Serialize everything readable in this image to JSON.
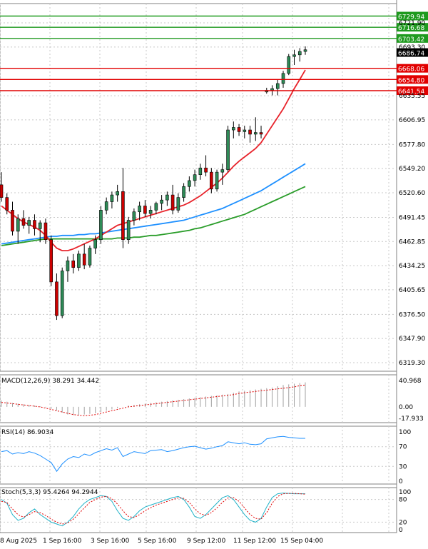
{
  "colors": {
    "bull": "#2e8b57",
    "bear": "#cc0000",
    "ma_fast": "#e8232b",
    "ma_mid": "#1e90ff",
    "ma_slow": "#2a9d2a",
    "resistance": "#1f9a1f",
    "support": "#e10000",
    "current_price_bg": "#000000",
    "grid": "#c8c8c8",
    "axis_text": "#000000"
  },
  "chart_data": [
    {
      "type": "candlestick",
      "panel": "price",
      "ylim": [
        6300,
        6750
      ],
      "y_ticks": [
        "6721.90",
        "6693.30",
        "6635.55",
        "6606.95",
        "6577.80",
        "6549.20",
        "6520.60",
        "6491.45",
        "6462.85",
        "6434.25",
        "6405.65",
        "6376.50",
        "6347.90",
        "6319.30"
      ],
      "current_price": {
        "label": "6686.74",
        "value": 6686.74
      },
      "resistance_levels": [
        {
          "label": "6729.94",
          "value": 6729.94
        },
        {
          "label": "6716.68",
          "value": 6716.68
        },
        {
          "label": "6703.42",
          "value": 6703.42
        }
      ],
      "support_levels": [
        {
          "label": "6668.06",
          "value": 6668.06
        },
        {
          "label": "6654.80",
          "value": 6654.8
        },
        {
          "label": "6641.54",
          "value": 6641.54
        }
      ],
      "candles": [
        [
          6530,
          6545,
          6510,
          6515
        ],
        [
          6515,
          6520,
          6495,
          6500
        ],
        [
          6500,
          6510,
          6470,
          6475
        ],
        [
          6475,
          6495,
          6460,
          6490
        ],
        [
          6490,
          6500,
          6478,
          6482
        ],
        [
          6482,
          6492,
          6472,
          6488
        ],
        [
          6488,
          6495,
          6470,
          6478
        ],
        [
          6478,
          6488,
          6462,
          6485
        ],
        [
          6485,
          6490,
          6460,
          6465
        ],
        [
          6465,
          6470,
          6410,
          6415
        ],
        [
          6415,
          6425,
          6370,
          6375
        ],
        [
          6375,
          6432,
          6372,
          6428
        ],
        [
          6428,
          6445,
          6415,
          6440
        ],
        [
          6440,
          6448,
          6425,
          6432
        ],
        [
          6432,
          6452,
          6428,
          6448
        ],
        [
          6448,
          6460,
          6430,
          6435
        ],
        [
          6435,
          6458,
          6432,
          6455
        ],
        [
          6455,
          6470,
          6448,
          6465
        ],
        [
          6465,
          6505,
          6460,
          6500
        ],
        [
          6500,
          6515,
          6495,
          6510
        ],
        [
          6510,
          6522,
          6502,
          6518
        ],
        [
          6518,
          6530,
          6510,
          6522
        ],
        [
          6522,
          6550,
          6455,
          6465
        ],
        [
          6465,
          6492,
          6460,
          6488
        ],
        [
          6488,
          6502,
          6482,
          6498
        ],
        [
          6498,
          6510,
          6488,
          6505
        ],
        [
          6505,
          6512,
          6492,
          6496
        ],
        [
          6496,
          6505,
          6490,
          6500
        ],
        [
          6500,
          6510,
          6495,
          6508
        ],
        [
          6508,
          6518,
          6500,
          6512
        ],
        [
          6512,
          6522,
          6505,
          6518
        ],
        [
          6518,
          6530,
          6495,
          6500
        ],
        [
          6500,
          6520,
          6497,
          6515
        ],
        [
          6515,
          6532,
          6510,
          6528
        ],
        [
          6528,
          6540,
          6522,
          6535
        ],
        [
          6535,
          6548,
          6528,
          6542
        ],
        [
          6542,
          6555,
          6536,
          6550
        ],
        [
          6550,
          6565,
          6540,
          6545
        ],
        [
          6545,
          6550,
          6520,
          6525
        ],
        [
          6525,
          6548,
          6522,
          6545
        ],
        [
          6545,
          6555,
          6530,
          6548
        ],
        [
          6548,
          6600,
          6545,
          6595
        ],
        [
          6595,
          6605,
          6585,
          6598
        ],
        [
          6598,
          6602,
          6588,
          6593
        ],
        [
          6593,
          6600,
          6585,
          6595
        ],
        [
          6595,
          6600,
          6580,
          6590
        ],
        [
          6590,
          6610,
          6582,
          6592
        ],
        [
          6592,
          6600,
          6585,
          6590
        ],
        [
          6640,
          6645,
          6638,
          6642
        ],
        [
          6642,
          6648,
          6636,
          6644
        ],
        [
          6644,
          6655,
          6636,
          6650
        ],
        [
          6650,
          6665,
          6645,
          6662
        ],
        [
          6662,
          6685,
          6660,
          6682
        ],
        [
          6682,
          6690,
          6672,
          6684
        ],
        [
          6684,
          6692,
          6676,
          6688
        ],
        [
          6688,
          6694,
          6684,
          6690
        ]
      ],
      "ma_fast": [
        6505,
        6500,
        6495,
        6490,
        6486,
        6483,
        6480,
        6476,
        6470,
        6462,
        6455,
        6452,
        6452,
        6454,
        6457,
        6460,
        6463,
        6466,
        6470,
        6474,
        6478,
        6482,
        6484,
        6486,
        6488,
        6490,
        6492,
        6494,
        6496,
        6498,
        6500,
        6502,
        6504,
        6506,
        6509,
        6513,
        6517,
        6522,
        6527,
        6532,
        6538,
        6545,
        6552,
        6558,
        6563,
        6568,
        6573,
        6580,
        6590,
        6600,
        6610,
        6620,
        6632,
        6644,
        6655,
        6666
      ],
      "ma_mid": [
        6460,
        6461,
        6462,
        6463,
        6464,
        6465,
        6466,
        6467,
        6468,
        6469,
        6469,
        6470,
        6470,
        6470,
        6471,
        6471,
        6472,
        6472,
        6473,
        6474,
        6475,
        6476,
        6477,
        6478,
        6479,
        6480,
        6481,
        6482,
        6483,
        6484,
        6485,
        6486,
        6487,
        6488,
        6490,
        6492,
        6494,
        6496,
        6498,
        6500,
        6502,
        6505,
        6508,
        6511,
        6514,
        6517,
        6520,
        6523,
        6527,
        6531,
        6535,
        6539,
        6543,
        6547,
        6551,
        6555
      ],
      "ma_slow": [
        6458,
        6459,
        6460,
        6461,
        6462,
        6463,
        6464,
        6465,
        6466,
        6466,
        6466,
        6466,
        6466,
        6466,
        6466,
        6466,
        6466,
        6466,
        6466,
        6466,
        6466,
        6467,
        6467,
        6467,
        6468,
        6468,
        6469,
        6470,
        6470,
        6471,
        6472,
        6473,
        6474,
        6475,
        6476,
        6478,
        6479,
        6481,
        6483,
        6485,
        6487,
        6489,
        6491,
        6493,
        6495,
        6498,
        6501,
        6504,
        6507,
        6510,
        6513,
        6516,
        6519,
        6522,
        6525,
        6528
      ]
    },
    {
      "type": "histogram",
      "panel": "macd",
      "title": "MACD(12,26,9) 38.291 34.442",
      "y_ticks": [
        "40.968",
        "0.00",
        "-17.933"
      ],
      "ylim": [
        -17.933,
        40.968
      ],
      "histogram": [
        10,
        8,
        6,
        5,
        4,
        3,
        2,
        1,
        -1,
        -3,
        -6,
        -9,
        -12,
        -13,
        -13,
        -12,
        -11,
        -10,
        -8,
        -6,
        -4,
        -2,
        0,
        2,
        3,
        4,
        5,
        6,
        7,
        8,
        9,
        10,
        11,
        12,
        13,
        14,
        15,
        16,
        17,
        18,
        19,
        20,
        22,
        24,
        25,
        26,
        27,
        28,
        29,
        30,
        32,
        34,
        35,
        36,
        37,
        38
      ],
      "signal": [
        7,
        6,
        5,
        4,
        3,
        2,
        1,
        0,
        -2,
        -4,
        -6,
        -8,
        -10,
        -12,
        -13,
        -14,
        -13,
        -12,
        -10,
        -8,
        -6,
        -4,
        -2,
        0,
        1,
        2,
        3,
        4,
        5,
        6,
        7,
        8,
        9,
        10,
        11,
        12,
        13,
        14,
        15,
        16,
        17,
        18,
        19,
        21,
        22,
        23,
        24,
        25,
        26,
        27,
        28,
        29,
        30,
        31,
        33,
        34
      ]
    },
    {
      "type": "line",
      "panel": "rsi",
      "title": "RSI(14) 86.9034",
      "y_ticks": [
        "100",
        "70",
        "30",
        "0"
      ],
      "ylim": [
        0,
        100
      ],
      "values": [
        60,
        62,
        55,
        58,
        56,
        60,
        57,
        52,
        45,
        38,
        20,
        35,
        45,
        50,
        48,
        55,
        52,
        58,
        62,
        66,
        63,
        68,
        50,
        55,
        60,
        58,
        56,
        62,
        63,
        64,
        60,
        62,
        65,
        68,
        70,
        71,
        68,
        65,
        67,
        70,
        72,
        80,
        78,
        76,
        78,
        75,
        74,
        76,
        86,
        88,
        90,
        91,
        89,
        88,
        87,
        87
      ]
    },
    {
      "type": "line",
      "panel": "stoch",
      "title": "Stoch(5,3,3) 95.4264 94.2944",
      "y_ticks": [
        "100",
        "80",
        "20",
        "0"
      ],
      "ylim": [
        0,
        100
      ],
      "main": [
        80,
        70,
        40,
        25,
        30,
        45,
        55,
        40,
        30,
        20,
        15,
        10,
        20,
        35,
        55,
        70,
        80,
        85,
        90,
        88,
        75,
        50,
        30,
        25,
        35,
        50,
        60,
        65,
        70,
        75,
        80,
        85,
        88,
        80,
        60,
        35,
        30,
        40,
        55,
        70,
        85,
        90,
        80,
        60,
        40,
        25,
        20,
        30,
        60,
        85,
        95,
        97,
        96,
        95,
        95,
        95
      ],
      "signal": [
        75,
        72,
        55,
        40,
        33,
        40,
        48,
        45,
        38,
        28,
        20,
        15,
        18,
        28,
        42,
        58,
        72,
        80,
        86,
        88,
        82,
        68,
        50,
        35,
        32,
        40,
        50,
        58,
        65,
        70,
        75,
        80,
        84,
        83,
        72,
        55,
        42,
        38,
        45,
        58,
        72,
        84,
        85,
        75,
        58,
        40,
        30,
        28,
        45,
        70,
        88,
        95,
        96,
        96,
        95,
        94
      ]
    }
  ],
  "x_axis": {
    "labels": [
      "8 Aug 2025",
      "1 Sep 16:00",
      "3 Sep 16:00",
      "5 Sep 16:00",
      "9 Sep 12:00",
      "11 Sep 12:00",
      "15 Sep 04:00"
    ]
  }
}
